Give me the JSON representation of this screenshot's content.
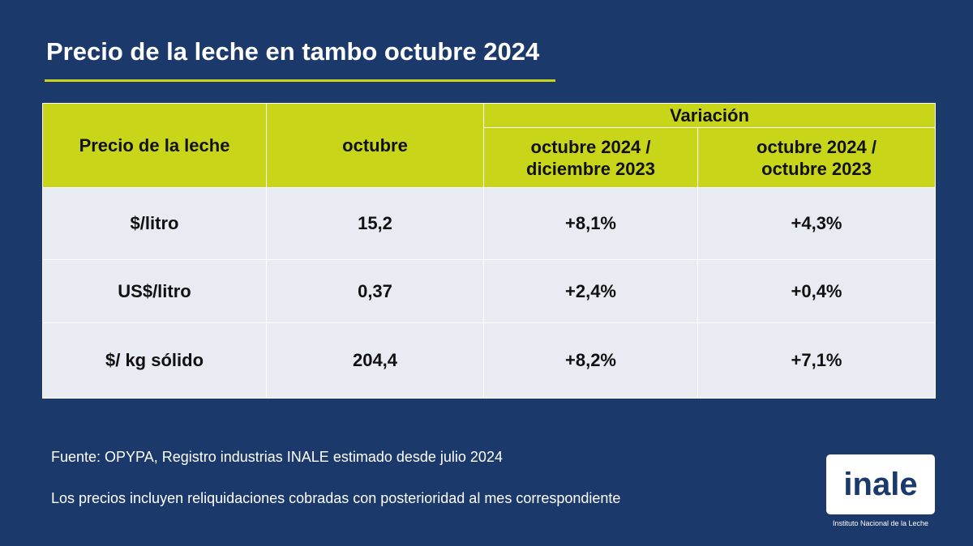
{
  "title": "Precio de la leche en tambo octubre 2024",
  "colors": {
    "background": "#1b3a6b",
    "header": "#c8d519",
    "body_row": "#e8ebf2",
    "accent_rule": "#c8d519"
  },
  "table": {
    "col_price": "Precio de la leche",
    "col_month": "octubre",
    "col_variation": "Variación",
    "col_var_1": "octubre 2024 / diciembre 2023",
    "col_var_1_line1": "octubre 2024 /",
    "col_var_1_line2": "diciembre 2023",
    "col_var_2": "octubre 2024 / octubre  2023",
    "col_var_2_line1": "octubre 2024 /",
    "col_var_2_line2": "octubre  2023",
    "rows": [
      {
        "label": "$/litro",
        "value": "15,2",
        "var_dec": "+8,1%",
        "var_oct": "+4,3%"
      },
      {
        "label": "US$/litro",
        "value": "0,37",
        "var_dec": "+2,4%",
        "var_oct": "+0,4%"
      },
      {
        "label": "$/ kg sólido",
        "value": "204,4",
        "var_dec": "+8,2%",
        "var_oct": "+7,1%"
      }
    ]
  },
  "notes": {
    "source": "Fuente: OPYPA, Registro industrias INALE estimado desde julio 2024",
    "prices": "Los precios incluyen reliquidaciones cobradas con posterioridad al mes correspondiente"
  },
  "logo": {
    "text": "inale",
    "caption": "Instituto Nacional de la Leche"
  }
}
